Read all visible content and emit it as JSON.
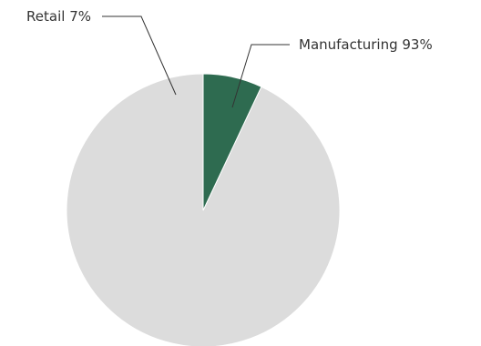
{
  "chart_data": {
    "type": "pie",
    "start_angle_deg": 0,
    "direction": "counterclockwise",
    "slices": [
      {
        "label": "Manufacturing 93%",
        "value": 93,
        "color": "#dcdcdc"
      },
      {
        "label": "Retail 7%",
        "value": 7,
        "color": "#2e6b50"
      }
    ]
  }
}
